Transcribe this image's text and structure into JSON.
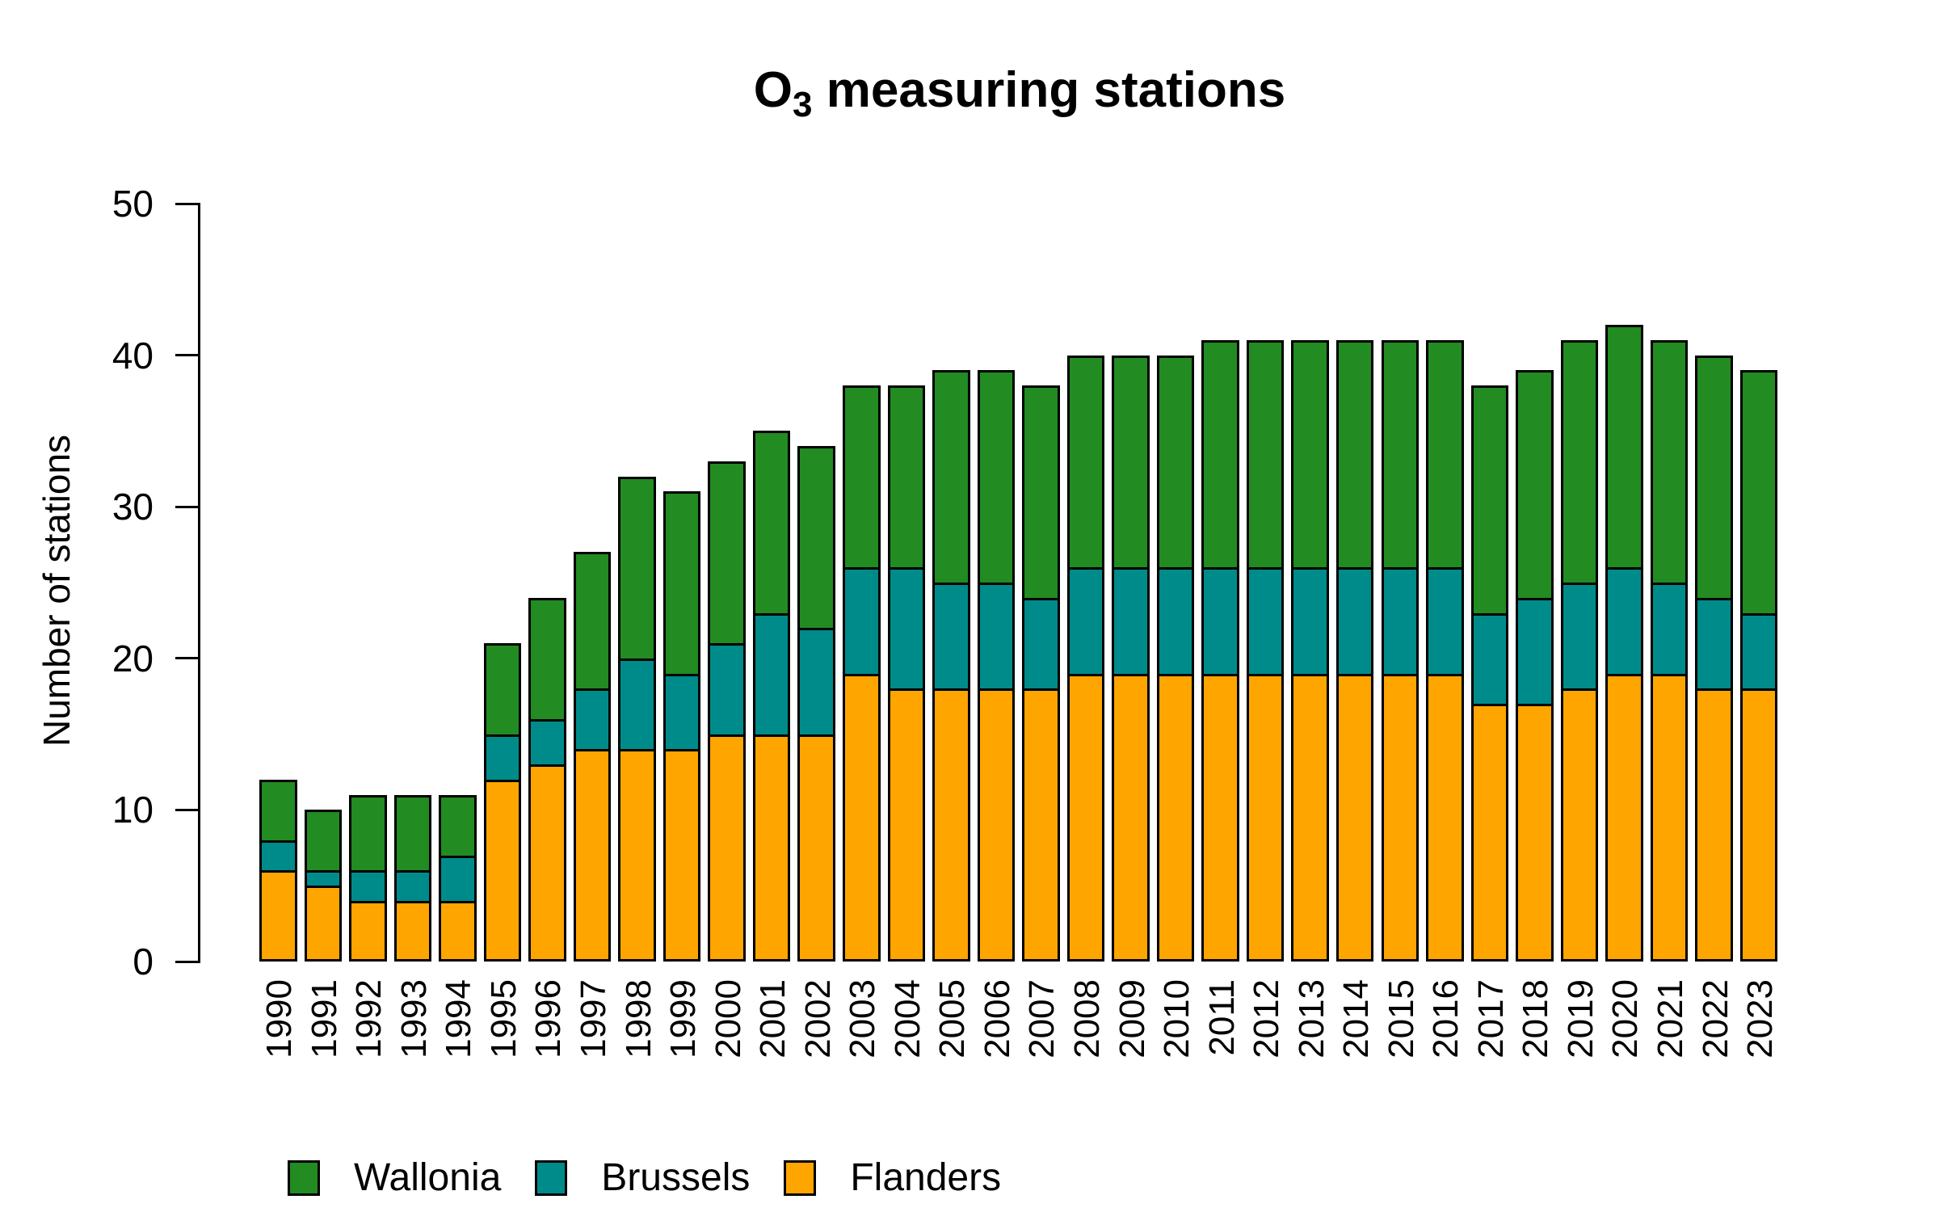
{
  "title": {
    "prefix": "O",
    "subscript": "3",
    "suffix": " measuring stations"
  },
  "y_axis": {
    "label": "Number of stations",
    "ticks": [
      0,
      10,
      20,
      30,
      40,
      50
    ]
  },
  "legend": {
    "items": [
      {
        "label": "Wallonia",
        "color": "#228B22"
      },
      {
        "label": "Brussels",
        "color": "#008B8B"
      },
      {
        "label": "Flanders",
        "color": "#FFA500"
      }
    ],
    "position": "bottom-left"
  },
  "chart_data": {
    "type": "bar",
    "stacked": true,
    "title": "O3 measuring stations",
    "xlabel": "",
    "ylabel": "Number of stations",
    "ylim": [
      0,
      50
    ],
    "grid": false,
    "legend_position": "bottom-left",
    "categories": [
      "1990",
      "1991",
      "1992",
      "1993",
      "1994",
      "1995",
      "1996",
      "1997",
      "1998",
      "1999",
      "2000",
      "2001",
      "2002",
      "2003",
      "2004",
      "2005",
      "2006",
      "2007",
      "2008",
      "2009",
      "2010",
      "2011",
      "2012",
      "2013",
      "2014",
      "2015",
      "2016",
      "2017",
      "2018",
      "2019",
      "2020",
      "2021",
      "2022",
      "2023"
    ],
    "series": [
      {
        "name": "Flanders",
        "color": "#FFA500",
        "values": [
          6,
          5,
          4,
          4,
          4,
          12,
          13,
          14,
          14,
          14,
          15,
          15,
          15,
          19,
          18,
          18,
          18,
          18,
          19,
          19,
          19,
          19,
          19,
          19,
          19,
          19,
          19,
          17,
          17,
          18,
          19,
          19,
          18,
          18
        ]
      },
      {
        "name": "Brussels",
        "color": "#008B8B",
        "values": [
          2,
          1,
          2,
          2,
          3,
          3,
          3,
          4,
          6,
          5,
          6,
          8,
          7,
          7,
          8,
          7,
          7,
          6,
          7,
          7,
          7,
          7,
          7,
          7,
          7,
          7,
          7,
          6,
          7,
          7,
          7,
          6,
          6,
          5
        ]
      },
      {
        "name": "Wallonia",
        "color": "#228B22",
        "values": [
          4,
          4,
          5,
          5,
          4,
          6,
          8,
          9,
          12,
          12,
          12,
          12,
          12,
          12,
          12,
          14,
          14,
          14,
          14,
          14,
          14,
          15,
          15,
          15,
          15,
          15,
          15,
          15,
          15,
          16,
          16,
          16,
          16,
          16
        ]
      }
    ],
    "totals": [
      12,
      10,
      11,
      11,
      11,
      21,
      24,
      27,
      32,
      31,
      33,
      35,
      34,
      38,
      38,
      39,
      39,
      38,
      40,
      40,
      40,
      41,
      41,
      41,
      41,
      41,
      41,
      38,
      39,
      41,
      42,
      41,
      40,
      39
    ]
  }
}
